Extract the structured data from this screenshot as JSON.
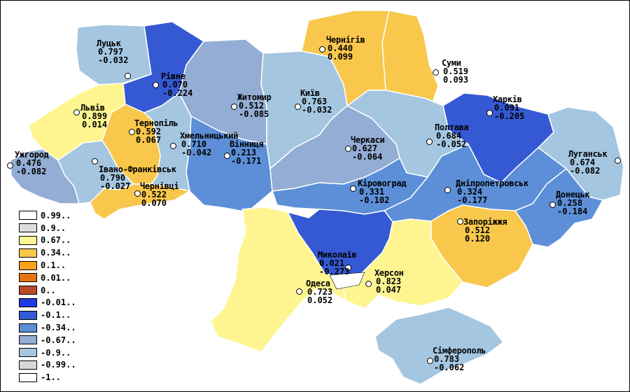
{
  "legend": [
    {
      "label": "0.99..",
      "color": "#ffffff"
    },
    {
      "label": "0.9..",
      "color": "#dcdcdc"
    },
    {
      "label": "0.67..",
      "color": "#fef590"
    },
    {
      "label": "0.34..",
      "color": "#f8c74b"
    },
    {
      "label": "0.1..",
      "color": "#f9a21f"
    },
    {
      "label": "0.01..",
      "color": "#e77414"
    },
    {
      "label": "0..",
      "color": "#b94b2c"
    },
    {
      "label": "-0.01..",
      "color": "#1f3be0"
    },
    {
      "label": "-0.1..",
      "color": "#3559d3"
    },
    {
      "label": "-0.34..",
      "color": "#5c8fd8"
    },
    {
      "label": "-0.67..",
      "color": "#94add4"
    },
    {
      "label": "-0.9..",
      "color": "#a4c6e0"
    },
    {
      "label": "-0.99..",
      "color": "#d8d8d8"
    },
    {
      "label": "-1..",
      "color": "#ffffff"
    }
  ],
  "regions": [
    {
      "name": "Луцьк",
      "v1": "0.797",
      "v2": "-0.032",
      "fill": "#a4c6e0"
    },
    {
      "name": "Рівне",
      "v1": "0.070",
      "v2": "-0.224",
      "fill": "#3559d3"
    },
    {
      "name": "Львів",
      "v1": "0.899",
      "v2": "0.014",
      "fill": "#fef590"
    },
    {
      "name": "Тернопіль",
      "v1": "0.592",
      "v2": "0.067",
      "fill": "#f8c74b"
    },
    {
      "name": "Ужгород",
      "v1": "0.476",
      "v2": "-0.082",
      "fill": "#94add4"
    },
    {
      "name": "Івано-Франківськ",
      "v1": "0.790",
      "v2": "-0.027",
      "fill": "#a4c6e0"
    },
    {
      "name": "Чернівці",
      "v1": "0.522",
      "v2": "0.070",
      "fill": "#f8c74b"
    },
    {
      "name": "Хмельницький",
      "v1": "0.710",
      "v2": "-0.042",
      "fill": "#a4c6e0"
    },
    {
      "name": "Вінниця",
      "v1": "0.213",
      "v2": "-0.171",
      "fill": "#5c8fd8"
    },
    {
      "name": "Житомир",
      "v1": "0.512",
      "v2": "-0.085",
      "fill": "#94add4"
    },
    {
      "name": "Київ",
      "v1": "0.763",
      "v2": "-0.032",
      "fill": "#a4c6e0"
    },
    {
      "name": "Чернігів",
      "v1": "0.440",
      "v2": "0.099",
      "fill": "#f8c74b"
    },
    {
      "name": "Суми",
      "v1": "0.519",
      "v2": "0.093",
      "fill": "#f8c74b"
    },
    {
      "name": "Черкаси",
      "v1": "0.627",
      "v2": "-0.064",
      "fill": "#94add4"
    },
    {
      "name": "Полтава",
      "v1": "0.684",
      "v2": "-0.052",
      "fill": "#a4c6e0"
    },
    {
      "name": "Харків",
      "v1": "0.091",
      "v2": "-0.205",
      "fill": "#3559d3"
    },
    {
      "name": "Луганськ",
      "v1": "0.674",
      "v2": "-0.082",
      "fill": "#a4c6e0"
    },
    {
      "name": "Кіровоград",
      "v1": "0.331",
      "v2": "-0.102",
      "fill": "#5c8fd8"
    },
    {
      "name": "Дніпропетровськ",
      "v1": "0.324",
      "v2": "-0.177",
      "fill": "#5c8fd8"
    },
    {
      "name": "Донецьк",
      "v1": "0.258",
      "v2": "-0.184",
      "fill": "#5c8fd8"
    },
    {
      "name": "Запоріжжя",
      "v1": "0.512",
      "v2": "0.120",
      "fill": "#f8c74b"
    },
    {
      "name": "Миколаїв",
      "v1": "0.021",
      "v2": "-0.273",
      "fill": "#3559d3"
    },
    {
      "name": "Херсон",
      "v1": "0.823",
      "v2": "0.047",
      "fill": "#fef590"
    },
    {
      "name": "Одеса",
      "v1": "0.723",
      "v2": "0.052",
      "fill": "#fef590"
    },
    {
      "name": "Сімферополь",
      "v1": "0.783",
      "v2": "-0.062",
      "fill": "#a4c6e0"
    }
  ]
}
